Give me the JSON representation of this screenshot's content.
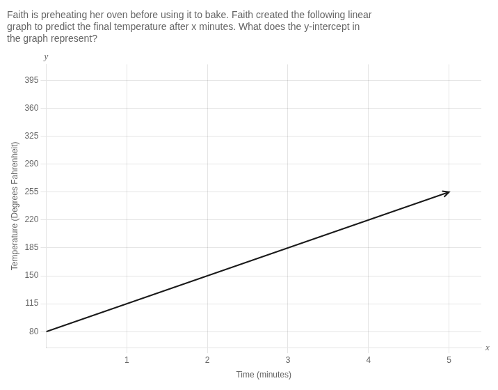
{
  "chart_data": {
    "type": "line",
    "title": "Faith is preheating her oven before using it to bake. Faith created the following linear\ngraph to predict the final temperature after x minutes. What does the y-intercept in\nthe graph represent?",
    "xlabel": "Time (minutes)",
    "ylabel": "Temperature (Degrees Fahrenheit)",
    "x": [
      0,
      5
    ],
    "values": [
      80,
      255
    ],
    "color": "#1a1a1a",
    "xlim": [
      0,
      5.4
    ],
    "ylim": [
      60,
      415
    ],
    "xticks": [
      1,
      2,
      3,
      4,
      5
    ],
    "yticks": [
      80,
      115,
      150,
      185,
      220,
      255,
      290,
      325,
      360,
      395
    ],
    "grid": true,
    "annotations": [
      "x",
      "y"
    ]
  }
}
